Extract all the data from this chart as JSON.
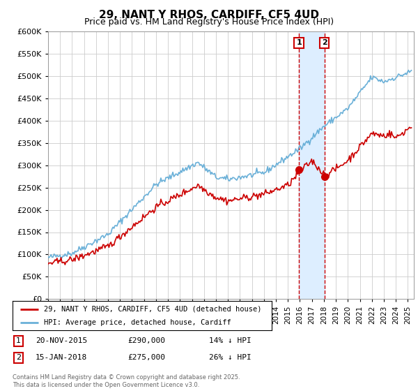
{
  "title": "29, NANT Y RHOS, CARDIFF, CF5 4UD",
  "subtitle": "Price paid vs. HM Land Registry's House Price Index (HPI)",
  "ylim": [
    0,
    600000
  ],
  "yticks": [
    0,
    50000,
    100000,
    150000,
    200000,
    250000,
    300000,
    350000,
    400000,
    450000,
    500000,
    550000,
    600000
  ],
  "xlim_start": 1995.0,
  "xlim_end": 2025.5,
  "hpi_color": "#6ab0d8",
  "price_color": "#cc0000",
  "vertical_line1_x": 2015.92,
  "vertical_line2_x": 2018.05,
  "shade_color": "#ddeeff",
  "transaction1_price": 290000,
  "transaction1_year": 2015.92,
  "transaction2_price": 275000,
  "transaction2_year": 2018.05,
  "transaction1_date": "20-NOV-2015",
  "transaction1_label": "14% ↓ HPI",
  "transaction2_date": "15-JAN-2018",
  "transaction2_label": "26% ↓ HPI",
  "legend_label1": "29, NANT Y RHOS, CARDIFF, CF5 4UD (detached house)",
  "legend_label2": "HPI: Average price, detached house, Cardiff",
  "footer": "Contains HM Land Registry data © Crown copyright and database right 2025.\nThis data is licensed under the Open Government Licence v3.0.",
  "bg_color": "#ffffff",
  "grid_color": "#cccccc",
  "title_fontsize": 11,
  "subtitle_fontsize": 9
}
